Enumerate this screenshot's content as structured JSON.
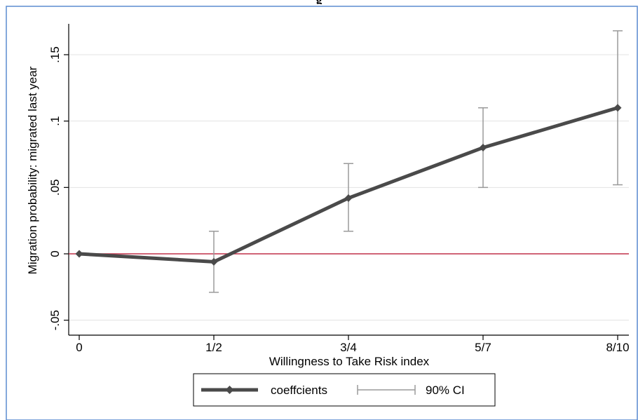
{
  "page_title_fragment": "g",
  "chart_data": {
    "type": "line",
    "title": "",
    "xlabel": "Willingness to Take Risk index",
    "ylabel": "Migration probability: migrated last year",
    "categories": [
      "0",
      "1/2",
      "3/4",
      "5/7",
      "8/10"
    ],
    "ylim": [
      -0.06,
      0.175
    ],
    "yticks": [
      {
        "value": -0.05,
        "label": "-.05"
      },
      {
        "value": 0,
        "label": "0"
      },
      {
        "value": 0.05,
        "label": ".05"
      },
      {
        "value": 0.1,
        "label": ".1"
      },
      {
        "value": 0.15,
        "label": ".15"
      }
    ],
    "grid": true,
    "reference_line": {
      "y": 0,
      "color": "#c0304a"
    },
    "series": [
      {
        "name": "coeffcients",
        "values": [
          0,
          -0.006,
          0.042,
          0.08,
          0.11
        ],
        "ci_lower": [
          0,
          -0.029,
          0.017,
          0.05,
          0.052
        ],
        "ci_upper": [
          0,
          0.017,
          0.068,
          0.11,
          0.168
        ],
        "color": "#4a4a4a"
      }
    ],
    "legend": {
      "position": "bottom",
      "items": [
        {
          "label": "coeffcients",
          "kind": "line-marker"
        },
        {
          "label": "90% CI",
          "kind": "capped-spike"
        }
      ]
    },
    "colors": {
      "line": "#4a4a4a",
      "ci": "#9a9a9a",
      "grid": "#e3e3e3",
      "frame": "#5b8bd0",
      "zero": "#c0304a"
    }
  }
}
